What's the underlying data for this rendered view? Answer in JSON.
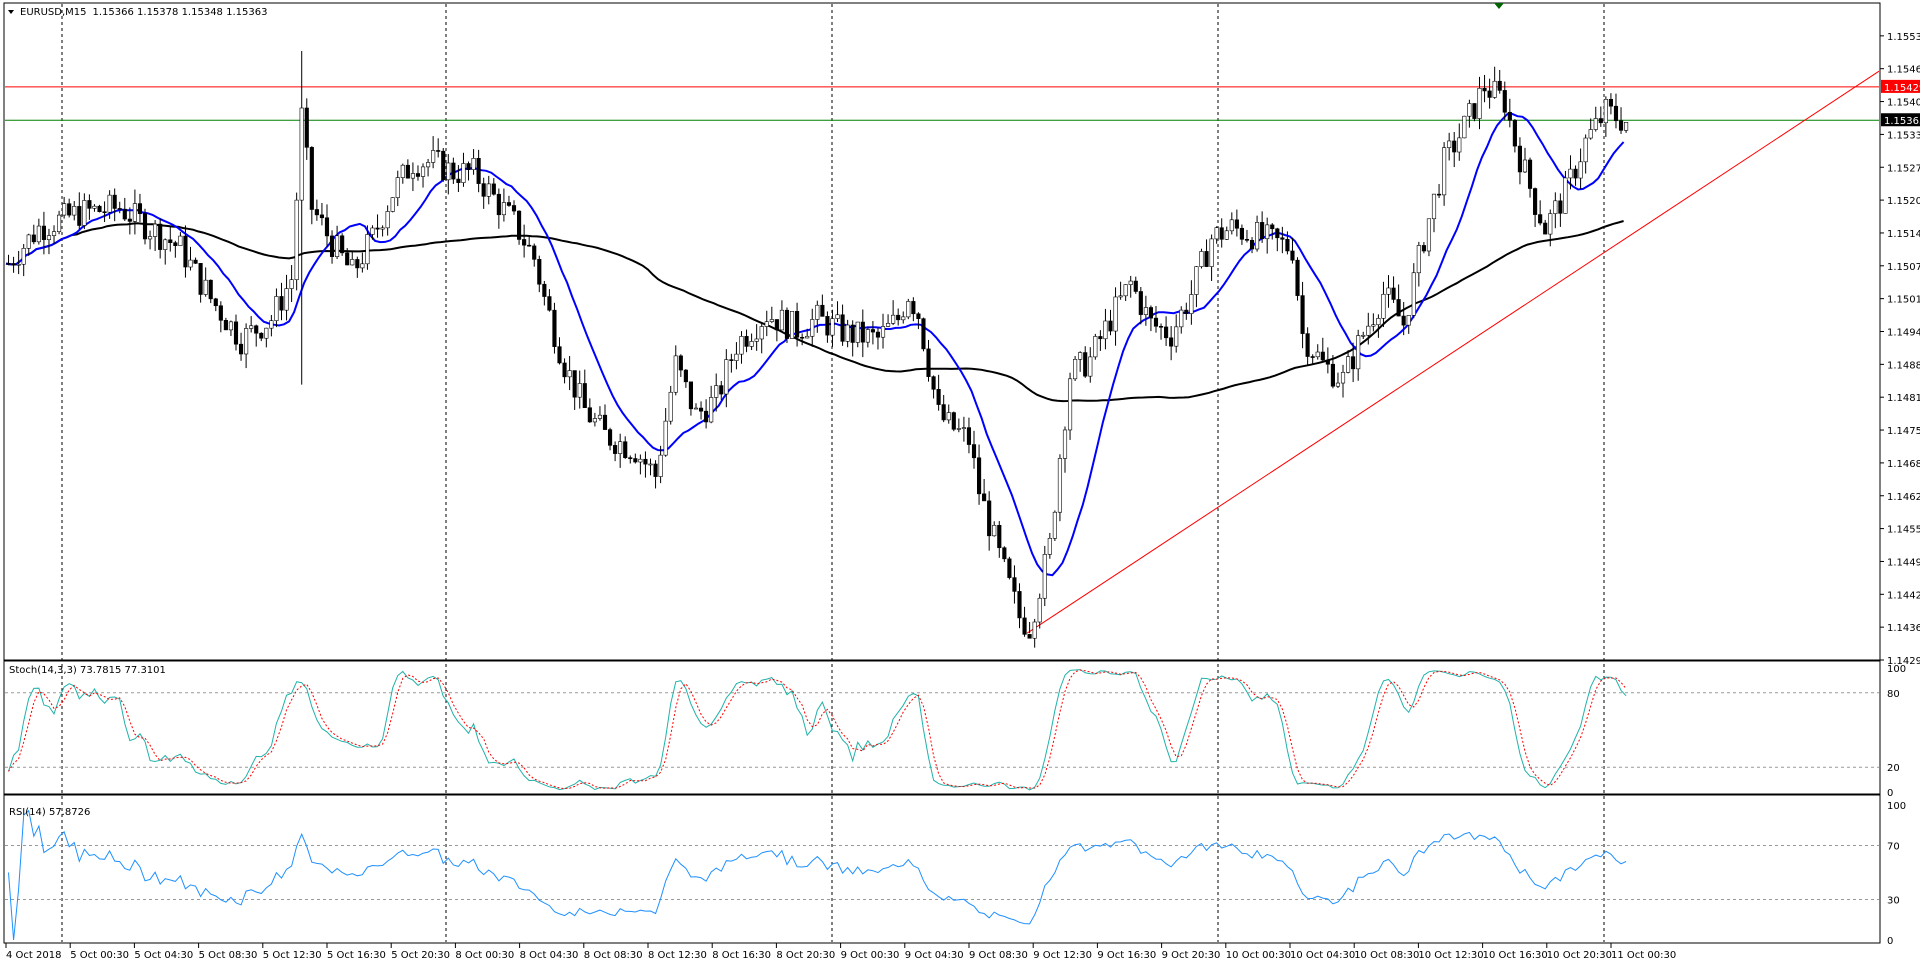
{
  "header": {
    "symbol": "EURUSD",
    "timeframe": "M15",
    "ohlc": "1.15366 1.15378 1.15348 1.15363",
    "stoch_label": "Stoch(14,3,3) 73.7815 77.3101",
    "rsi_label": "RSI(14) 57.8726"
  },
  "chart_data": {
    "type": "candlestick",
    "x_labels": [
      "4 Oct 2018",
      "5 Oct 00:30",
      "5 Oct 04:30",
      "5 Oct 08:30",
      "5 Oct 12:30",
      "5 Oct 16:30",
      "5 Oct 20:30",
      "8 Oct 00:30",
      "8 Oct 04:30",
      "8 Oct 08:30",
      "8 Oct 12:30",
      "8 Oct 16:30",
      "8 Oct 20:30",
      "9 Oct 00:30",
      "9 Oct 04:30",
      "9 Oct 08:30",
      "9 Oct 12:30",
      "9 Oct 16:30",
      "9 Oct 20:30",
      "10 Oct 00:30",
      "10 Oct 04:30",
      "10 Oct 08:30",
      "10 Oct 12:30",
      "10 Oct 16:30",
      "10 Oct 20:30",
      "11 Oct 00:30"
    ],
    "price_axis_labels": [
      "1.15530",
      "1.15465",
      "1.15400",
      "1.15335",
      "1.15270",
      "1.15205",
      "1.15140",
      "1.15075",
      "1.15010",
      "1.14945",
      "1.14880",
      "1.14815",
      "1.14750",
      "1.14685",
      "1.14620",
      "1.14555",
      "1.14490",
      "1.14425",
      "1.14360",
      "1.14295"
    ],
    "ylim": [
      1.14295,
      1.15595
    ],
    "price_path": [
      [
        0,
        1.1508
      ],
      [
        6,
        1.1515
      ],
      [
        14,
        1.1518
      ],
      [
        22,
        1.1519
      ],
      [
        28,
        1.1515
      ],
      [
        34,
        1.1511
      ],
      [
        40,
        1.1501
      ],
      [
        46,
        1.1493
      ],
      [
        52,
        1.1497
      ],
      [
        56,
        1.1505
      ],
      [
        58,
        1.1537
      ],
      [
        60,
        1.1519
      ],
      [
        64,
        1.1512
      ],
      [
        68,
        1.1506
      ],
      [
        72,
        1.1513
      ],
      [
        76,
        1.1522
      ],
      [
        80,
        1.1528
      ],
      [
        84,
        1.1528
      ],
      [
        88,
        1.1526
      ],
      [
        92,
        1.1526
      ],
      [
        96,
        1.1521
      ],
      [
        100,
        1.1516
      ],
      [
        104,
        1.1509
      ],
      [
        106,
        1.1501
      ],
      [
        110,
        1.1488
      ],
      [
        114,
        1.1479
      ],
      [
        118,
        1.1474
      ],
      [
        124,
        1.1471
      ],
      [
        128,
        1.1466
      ],
      [
        132,
        1.1488
      ],
      [
        136,
        1.1478
      ],
      [
        140,
        1.1481
      ],
      [
        144,
        1.1492
      ],
      [
        150,
        1.1498
      ],
      [
        156,
        1.1495
      ],
      [
        160,
        1.1497
      ],
      [
        166,
        1.1494
      ],
      [
        172,
        1.1493
      ],
      [
        176,
        1.1497
      ],
      [
        178,
        1.1502
      ],
      [
        180,
        1.1498
      ],
      [
        184,
        1.1478
      ],
      [
        186,
        1.1476
      ],
      [
        190,
        1.1473
      ],
      [
        192,
        1.1463
      ],
      [
        196,
        1.145
      ],
      [
        200,
        1.1438
      ],
      [
        202,
        1.1436
      ],
      [
        206,
        1.1452
      ],
      [
        208,
        1.147
      ],
      [
        210,
        1.1486
      ],
      [
        214,
        1.1489
      ],
      [
        218,
        1.1497
      ],
      [
        222,
        1.1504
      ],
      [
        226,
        1.1496
      ],
      [
        230,
        1.1494
      ],
      [
        234,
        1.1502
      ],
      [
        238,
        1.1513
      ],
      [
        242,
        1.1515
      ],
      [
        248,
        1.1513
      ],
      [
        254,
        1.1511
      ],
      [
        256,
        1.1494
      ],
      [
        260,
        1.1488
      ],
      [
        264,
        1.1485
      ],
      [
        268,
        1.1494
      ],
      [
        272,
        1.1502
      ],
      [
        276,
        1.1496
      ],
      [
        280,
        1.1513
      ],
      [
        284,
        1.1528
      ],
      [
        288,
        1.1535
      ],
      [
        292,
        1.1543
      ],
      [
        296,
        1.154
      ],
      [
        298,
        1.1532
      ],
      [
        302,
        1.152
      ],
      [
        304,
        1.1515
      ],
      [
        308,
        1.1522
      ],
      [
        312,
        1.1532
      ],
      [
        316,
        1.1538
      ],
      [
        320,
        1.1536
      ]
    ],
    "chart_window_bars": 328,
    "price_marker": "1.15363",
    "resistance_marker": "1.15429",
    "horizontal_lines": [
      {
        "price": 1.15429,
        "color": "#ff0000"
      },
      {
        "price": 1.15363,
        "color": "#008000"
      }
    ],
    "trendline": {
      "from": [
        1.14348
      ],
      "to": [
        1.1546
      ],
      "color": "#ff0000"
    },
    "ma_fast": {
      "color": "#0000ff",
      "period_label": ""
    },
    "ma_slow": {
      "color": "#000000",
      "period_label": ""
    },
    "stoch_axis_labels": [
      "100",
      "80",
      "20",
      "0"
    ],
    "rsi_axis_labels": [
      "100",
      "70",
      "30",
      "0"
    ],
    "stoch_levels": [
      80,
      20
    ],
    "rsi_levels": [
      70,
      30
    ],
    "colors": {
      "candle_up": "#000000",
      "candle_down": "#000000",
      "stoch_main": "#20b2aa",
      "stoch_signal": "#ff0000",
      "rsi": "#1e90ff",
      "grid": "#000000",
      "marker_price_bg": "#000000",
      "marker_res_bg": "#ff0000"
    }
  }
}
